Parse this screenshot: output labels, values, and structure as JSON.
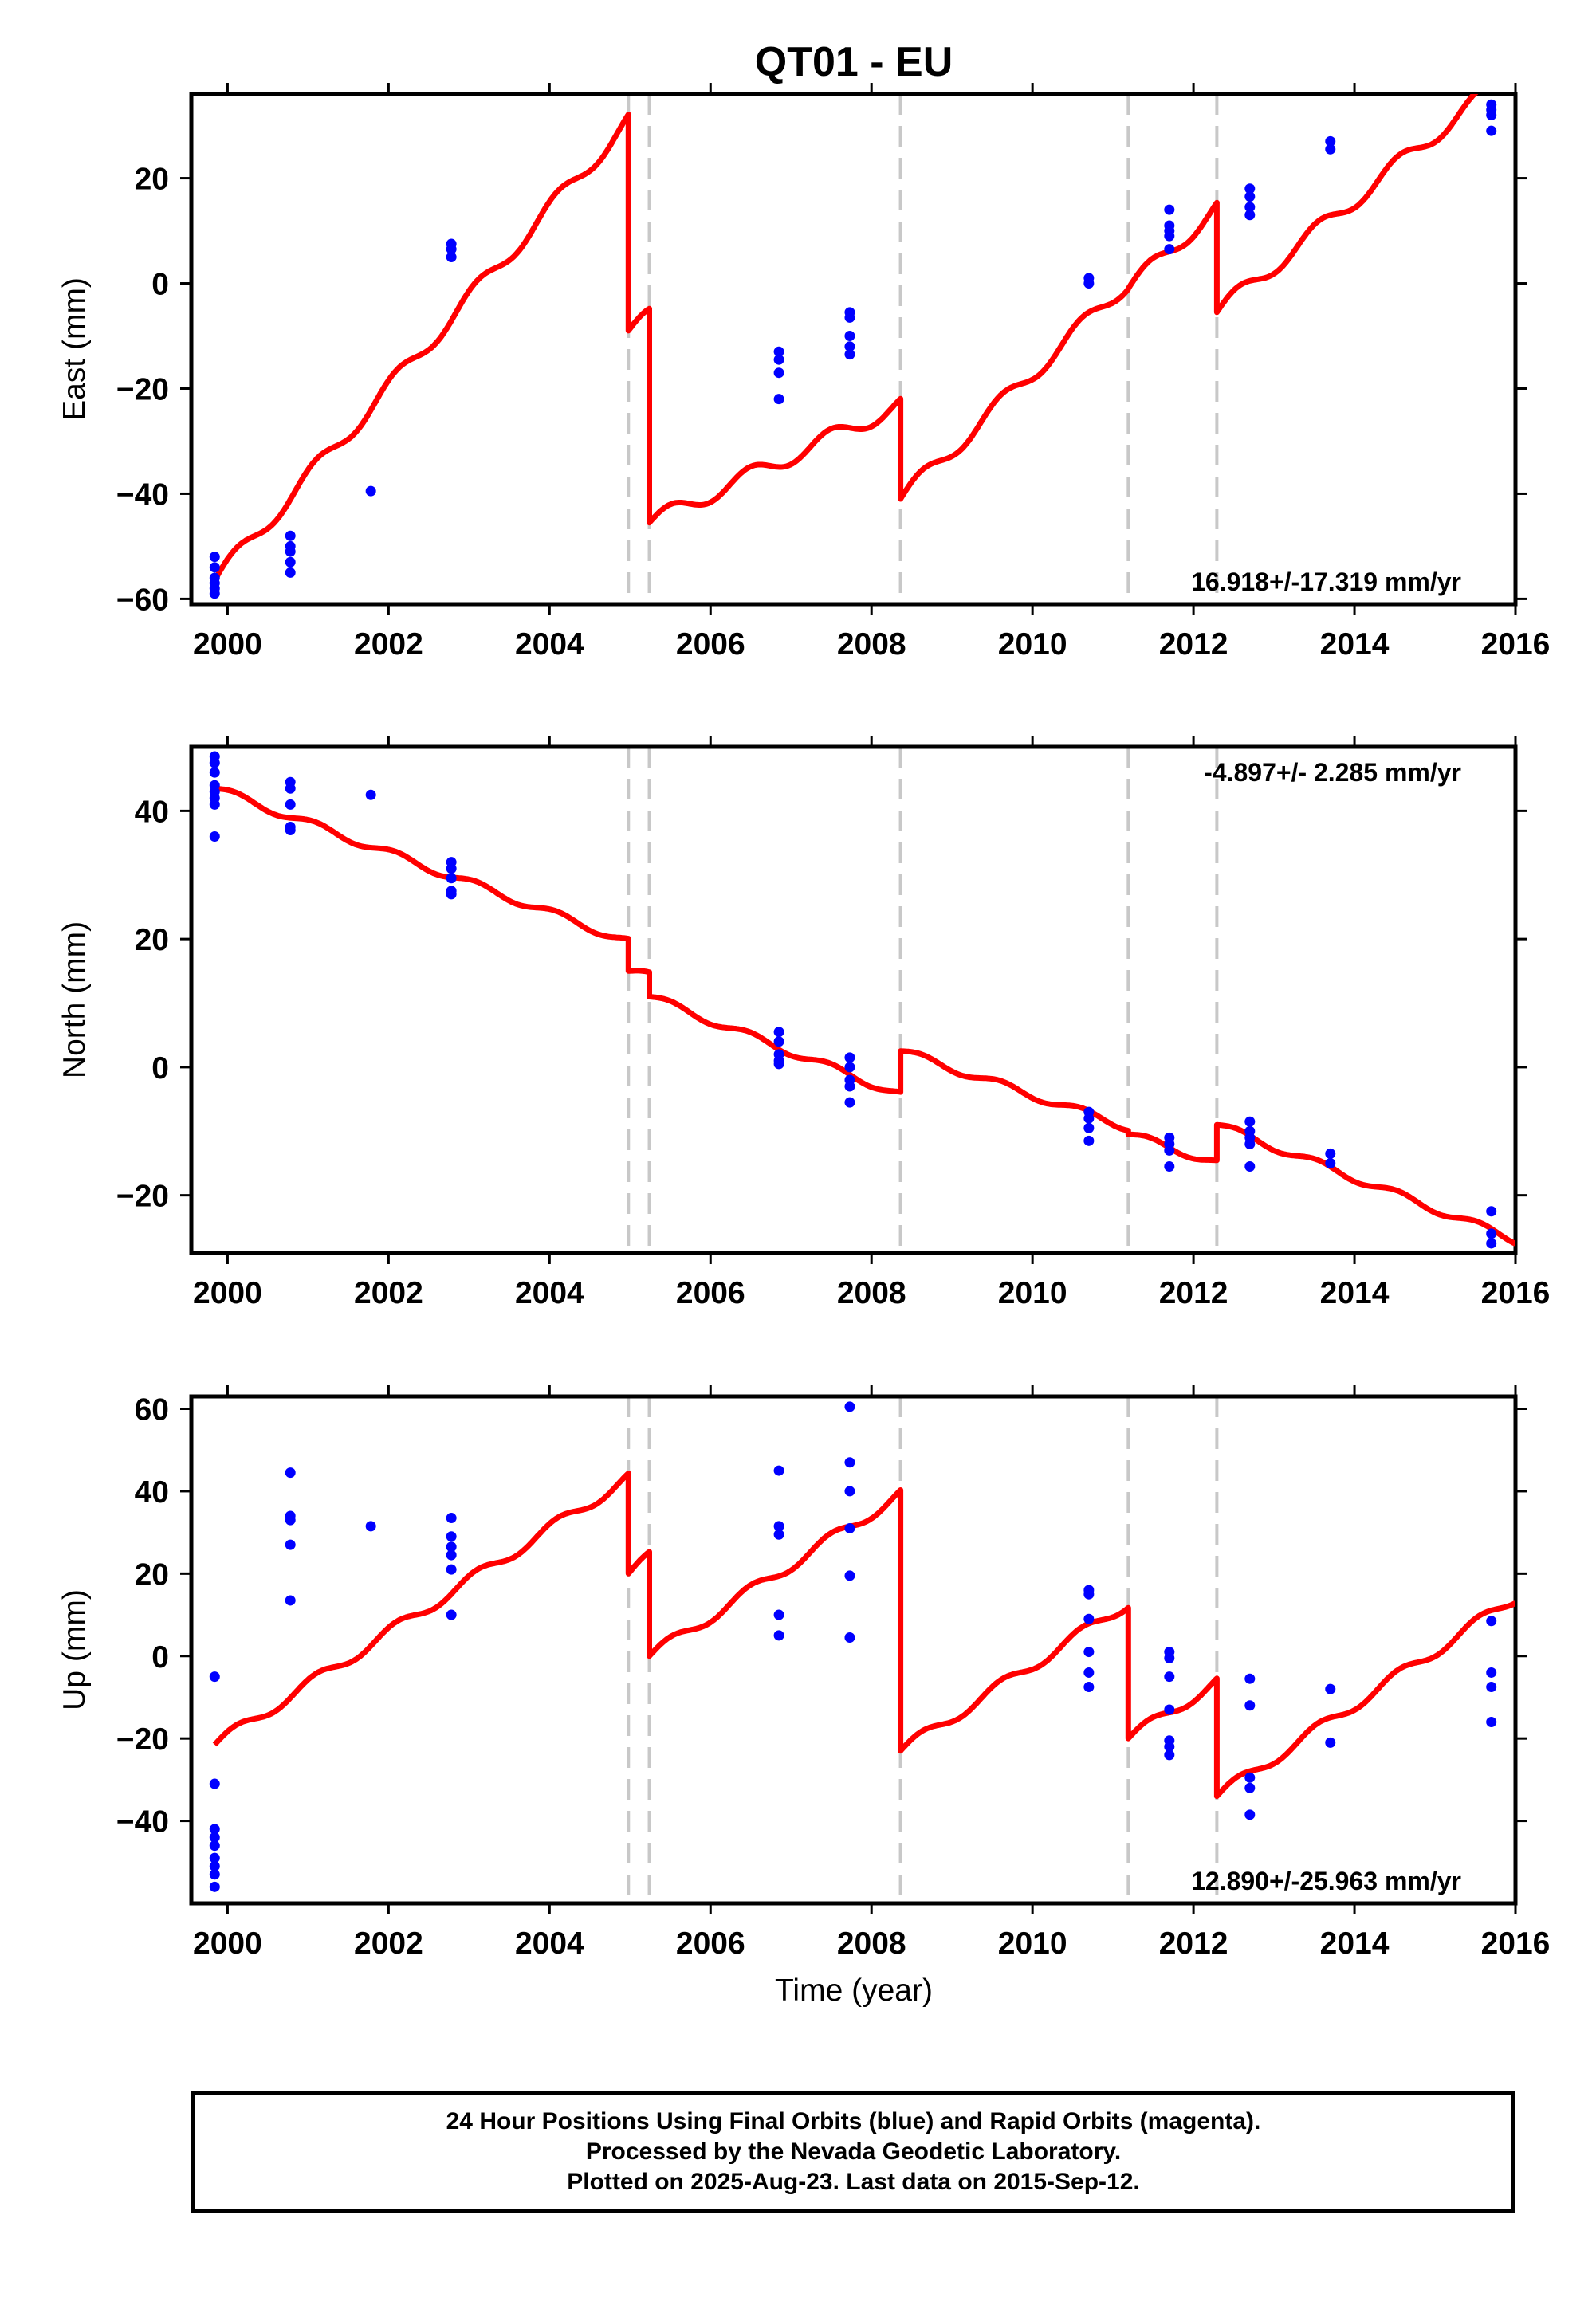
{
  "title": "QT01 - EU",
  "footer": {
    "lines": [
      "24 Hour Positions Using Final Orbits (blue) and Rapid Orbits (magenta).",
      "Processed by the Nevada Geodetic Laboratory.",
      "Plotted on 2025-Aug-23. Last data on 2015-Sep-12."
    ]
  },
  "colors": {
    "data_points": "#0000ff",
    "model_line": "#ff0000",
    "event_lines": "#c8c8c8",
    "frame": "#000000"
  },
  "chart_data": [
    {
      "type": "scatter",
      "name": "east",
      "ylabel": "East (mm)",
      "xlabel": "",
      "xlim": [
        1999.55,
        2016.0
      ],
      "ylim": [
        -61,
        36
      ],
      "x_ticks": [
        2000,
        2002,
        2004,
        2006,
        2008,
        2010,
        2012,
        2014,
        2016
      ],
      "y_ticks": [
        -60,
        -40,
        -20,
        0,
        20
      ],
      "rate_label": "16.918+/-17.319 mm/yr",
      "rate_label_position": "bottom-right",
      "event_lines": [
        2004.98,
        2005.24,
        2008.36,
        2011.19,
        2012.29
      ],
      "points": [
        [
          1999.84,
          -52
        ],
        [
          1999.84,
          -54
        ],
        [
          1999.84,
          -56
        ],
        [
          1999.84,
          -57
        ],
        [
          1999.84,
          -58
        ],
        [
          1999.84,
          -59
        ],
        [
          2000.78,
          -48
        ],
        [
          2000.78,
          -50
        ],
        [
          2000.78,
          -51
        ],
        [
          2000.78,
          -53
        ],
        [
          2000.78,
          -55
        ],
        [
          2001.78,
          -39.5
        ],
        [
          2002.78,
          7.5
        ],
        [
          2002.78,
          6.5
        ],
        [
          2002.78,
          5
        ],
        [
          2006.85,
          -13
        ],
        [
          2006.85,
          -14.5
        ],
        [
          2006.85,
          -17
        ],
        [
          2006.85,
          -22
        ],
        [
          2007.73,
          -5.5
        ],
        [
          2007.73,
          -6.5
        ],
        [
          2007.73,
          -10
        ],
        [
          2007.73,
          -12
        ],
        [
          2007.73,
          -13.5
        ],
        [
          2010.7,
          1
        ],
        [
          2010.7,
          0
        ],
        [
          2011.7,
          14
        ],
        [
          2011.7,
          11
        ],
        [
          2011.7,
          10
        ],
        [
          2011.7,
          9
        ],
        [
          2011.7,
          6.5
        ],
        [
          2012.7,
          18
        ],
        [
          2012.7,
          16.5
        ],
        [
          2012.7,
          14.5
        ],
        [
          2012.7,
          13
        ],
        [
          2013.7,
          27
        ],
        [
          2013.7,
          25.5
        ],
        [
          2015.7,
          34
        ],
        [
          2015.7,
          33
        ],
        [
          2015.7,
          32
        ],
        [
          2015.7,
          29
        ]
      ],
      "model": {
        "segments": [
          {
            "start": 1999.84,
            "end": 2004.98,
            "a0": -56.5,
            "rate": 17.0
          },
          {
            "start": 2004.98,
            "end": 2005.24,
            "a0": -9.0,
            "rate": 10.0
          },
          {
            "start": 2005.24,
            "end": 2008.36,
            "a0": -45.5,
            "rate": 7.2
          },
          {
            "start": 2008.36,
            "end": 2011.19,
            "a0": -41.0,
            "rate": 14.6
          },
          {
            "start": 2011.19,
            "end": 2012.29,
            "a0": -1.0,
            "rate": 14.0
          },
          {
            "start": 2012.29,
            "end": 2016.0,
            "a0": -5.5,
            "rate": 12.5
          }
        ],
        "seasonal_amplitude": 1.6
      }
    },
    {
      "type": "scatter",
      "name": "north",
      "ylabel": "North (mm)",
      "xlabel": "",
      "xlim": [
        1999.55,
        2016.0
      ],
      "ylim": [
        -29,
        50
      ],
      "x_ticks": [
        2000,
        2002,
        2004,
        2006,
        2008,
        2010,
        2012,
        2014,
        2016
      ],
      "y_ticks": [
        -20,
        0,
        20,
        40
      ],
      "rate_label": "-4.897+/- 2.285 mm/yr",
      "rate_label_position": "top-right",
      "event_lines": [
        2004.98,
        2005.24,
        2008.36,
        2011.19,
        2012.29
      ],
      "points": [
        [
          1999.84,
          48.5
        ],
        [
          1999.84,
          47.5
        ],
        [
          1999.84,
          46
        ],
        [
          1999.84,
          44
        ],
        [
          1999.84,
          43
        ],
        [
          1999.84,
          42
        ],
        [
          1999.84,
          41
        ],
        [
          1999.84,
          36
        ],
        [
          2000.78,
          44.5
        ],
        [
          2000.78,
          43.5
        ],
        [
          2000.78,
          41
        ],
        [
          2000.78,
          37.5
        ],
        [
          2000.78,
          37
        ],
        [
          2001.78,
          42.5
        ],
        [
          2002.78,
          32
        ],
        [
          2002.78,
          31
        ],
        [
          2002.78,
          29.5
        ],
        [
          2002.78,
          27.5
        ],
        [
          2002.78,
          27
        ],
        [
          2006.85,
          5.5
        ],
        [
          2006.85,
          4
        ],
        [
          2006.85,
          2
        ],
        [
          2006.85,
          1
        ],
        [
          2006.85,
          0.5
        ],
        [
          2007.73,
          1.5
        ],
        [
          2007.73,
          0
        ],
        [
          2007.73,
          -2
        ],
        [
          2007.73,
          -3
        ],
        [
          2007.73,
          -5.5
        ],
        [
          2010.7,
          -7
        ],
        [
          2010.7,
          -8
        ],
        [
          2010.7,
          -9.5
        ],
        [
          2010.7,
          -11.5
        ],
        [
          2011.7,
          -11
        ],
        [
          2011.7,
          -12
        ],
        [
          2011.7,
          -13
        ],
        [
          2011.7,
          -15.5
        ],
        [
          2012.7,
          -8.5
        ],
        [
          2012.7,
          -10
        ],
        [
          2012.7,
          -11
        ],
        [
          2012.7,
          -12
        ],
        [
          2012.7,
          -15.5
        ],
        [
          2013.7,
          -13.5
        ],
        [
          2013.7,
          -15
        ],
        [
          2015.7,
          -22.5
        ],
        [
          2015.7,
          -26
        ],
        [
          2015.7,
          -27.5
        ]
      ],
      "model": {
        "segments": [
          {
            "start": 1999.84,
            "end": 2004.98,
            "a0": 43.5,
            "rate": -4.65
          },
          {
            "start": 2004.98,
            "end": 2005.24,
            "a0": 15.0,
            "rate": -3.0
          },
          {
            "start": 2005.24,
            "end": 2008.36,
            "a0": 11.0,
            "rate": -4.9
          },
          {
            "start": 2008.36,
            "end": 2011.19,
            "a0": 2.5,
            "rate": -4.2
          },
          {
            "start": 2011.19,
            "end": 2012.29,
            "a0": -10.5,
            "rate": -4.0
          },
          {
            "start": 2012.29,
            "end": 2016.0,
            "a0": -9.0,
            "rate": -4.85
          }
        ],
        "seasonal_amplitude": 0.6
      }
    },
    {
      "type": "scatter",
      "name": "up",
      "ylabel": "Up (mm)",
      "xlabel": "Time (year)",
      "xlim": [
        1999.55,
        2016.0
      ],
      "ylim": [
        -60,
        63
      ],
      "x_ticks": [
        2000,
        2002,
        2004,
        2006,
        2008,
        2010,
        2012,
        2014,
        2016
      ],
      "y_ticks": [
        -40,
        -20,
        0,
        20,
        40,
        60
      ],
      "rate_label": "12.890+/-25.963 mm/yr",
      "rate_label_position": "bottom-right",
      "event_lines": [
        2004.98,
        2005.24,
        2008.36,
        2011.19,
        2012.29
      ],
      "points": [
        [
          1999.84,
          -5
        ],
        [
          1999.84,
          -31
        ],
        [
          1999.84,
          -42
        ],
        [
          1999.84,
          -44
        ],
        [
          1999.84,
          -46
        ],
        [
          1999.84,
          -49
        ],
        [
          1999.84,
          -51
        ],
        [
          1999.84,
          -53
        ],
        [
          1999.84,
          -56
        ],
        [
          2000.78,
          44.5
        ],
        [
          2000.78,
          34
        ],
        [
          2000.78,
          33
        ],
        [
          2000.78,
          27
        ],
        [
          2000.78,
          13.5
        ],
        [
          2001.78,
          31.5
        ],
        [
          2002.78,
          33.5
        ],
        [
          2002.78,
          29
        ],
        [
          2002.78,
          26.5
        ],
        [
          2002.78,
          24.5
        ],
        [
          2002.78,
          21
        ],
        [
          2002.78,
          10
        ],
        [
          2006.85,
          45
        ],
        [
          2006.85,
          31.5
        ],
        [
          2006.85,
          29.5
        ],
        [
          2006.85,
          10
        ],
        [
          2006.85,
          5
        ],
        [
          2007.73,
          60.5
        ],
        [
          2007.73,
          47
        ],
        [
          2007.73,
          40
        ],
        [
          2007.73,
          31
        ],
        [
          2007.73,
          19.5
        ],
        [
          2007.73,
          4.5
        ],
        [
          2010.7,
          16
        ],
        [
          2010.7,
          15
        ],
        [
          2010.7,
          9
        ],
        [
          2010.7,
          1
        ],
        [
          2010.7,
          -4
        ],
        [
          2010.7,
          -7.5
        ],
        [
          2011.7,
          1
        ],
        [
          2011.7,
          -0.5
        ],
        [
          2011.7,
          -5
        ],
        [
          2011.7,
          -13
        ],
        [
          2011.7,
          -20.5
        ],
        [
          2011.7,
          -22
        ],
        [
          2011.7,
          -24
        ],
        [
          2012.7,
          -5.5
        ],
        [
          2012.7,
          -12
        ],
        [
          2012.7,
          -29.5
        ],
        [
          2012.7,
          -32
        ],
        [
          2012.7,
          -38.5
        ],
        [
          2013.7,
          -8
        ],
        [
          2013.7,
          -21
        ],
        [
          2015.7,
          8.5
        ],
        [
          2015.7,
          -4
        ],
        [
          2015.7,
          -7.5
        ],
        [
          2015.7,
          -16
        ]
      ],
      "model": {
        "segments": [
          {
            "start": 1999.84,
            "end": 2004.98,
            "a0": -21.5,
            "rate": 12.6
          },
          {
            "start": 2004.98,
            "end": 2005.24,
            "a0": 20.0,
            "rate": 15.0
          },
          {
            "start": 2005.24,
            "end": 2008.36,
            "a0": 0.0,
            "rate": 12.6
          },
          {
            "start": 2008.36,
            "end": 2011.19,
            "a0": -23.0,
            "rate": 12.7
          },
          {
            "start": 2011.19,
            "end": 2012.29,
            "a0": -20.0,
            "rate": 12.5
          },
          {
            "start": 2012.29,
            "end": 2016.0,
            "a0": -34.0,
            "rate": 13.0
          }
        ],
        "seasonal_amplitude": 1.4
      }
    }
  ]
}
